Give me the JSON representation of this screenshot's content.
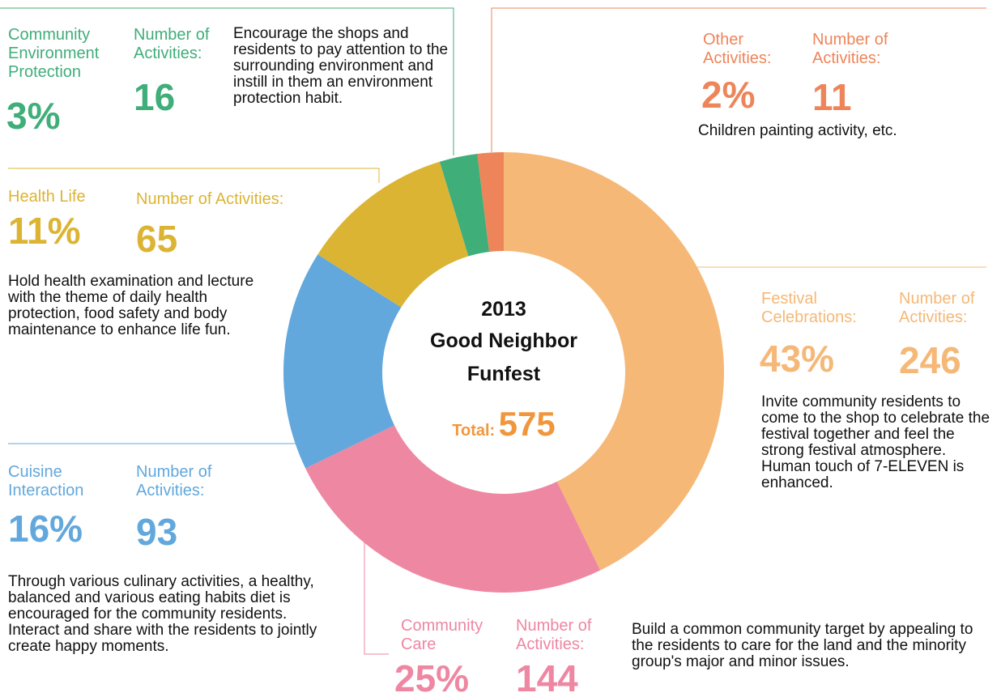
{
  "chart_data": {
    "type": "pie",
    "title": [
      "2013",
      "Good Neighbor",
      "Funfest"
    ],
    "total_label": "Total:",
    "total": 575,
    "count_label": "Number of Activities:",
    "categories": [
      "Festival Celebrations:",
      "Community Care",
      "Cuisine Interaction",
      "Health Life",
      "Community Environment Protection",
      "Other Activities:"
    ],
    "values": [
      246,
      144,
      93,
      65,
      16,
      11
    ],
    "percent_labels": [
      "43%",
      "25%",
      "16%",
      "11%",
      "3%",
      "2%"
    ],
    "colors": [
      "#f5b877",
      "#ee87a2",
      "#62a8dc",
      "#dcb434",
      "#3fae79",
      "#ee855a"
    ],
    "descriptions": [
      "Invite community residents to come to the shop to celebrate the festival together and feel the strong festival atmosphere. Human touch of 7-ELEVEN is enhanced.",
      "Build a common community target by appealing to the residents to care for the land and the minority group's major and minor issues.",
      "Through various culinary activities, a healthy, balanced and various eating habits diet is encouraged for the community residents. Interact and share with the residents to jointly create happy moments.",
      "Hold health examination and lecture with the theme of daily health protection, food safety and body maintenance to enhance life fun.",
      "Encourage the shops and residents to pay attention to the surrounding environment and instill in them an environment protection habit.",
      "Children painting activity, etc."
    ]
  }
}
